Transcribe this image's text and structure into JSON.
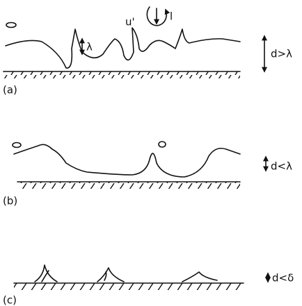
{
  "panels": [
    {
      "label": "(a)",
      "condition": "d>λ",
      "annotations": [
        "λ",
        "u'",
        "l"
      ]
    },
    {
      "label": "(b)",
      "condition": "d<λ"
    },
    {
      "label": "(c)",
      "condition": "d<δ"
    }
  ]
}
